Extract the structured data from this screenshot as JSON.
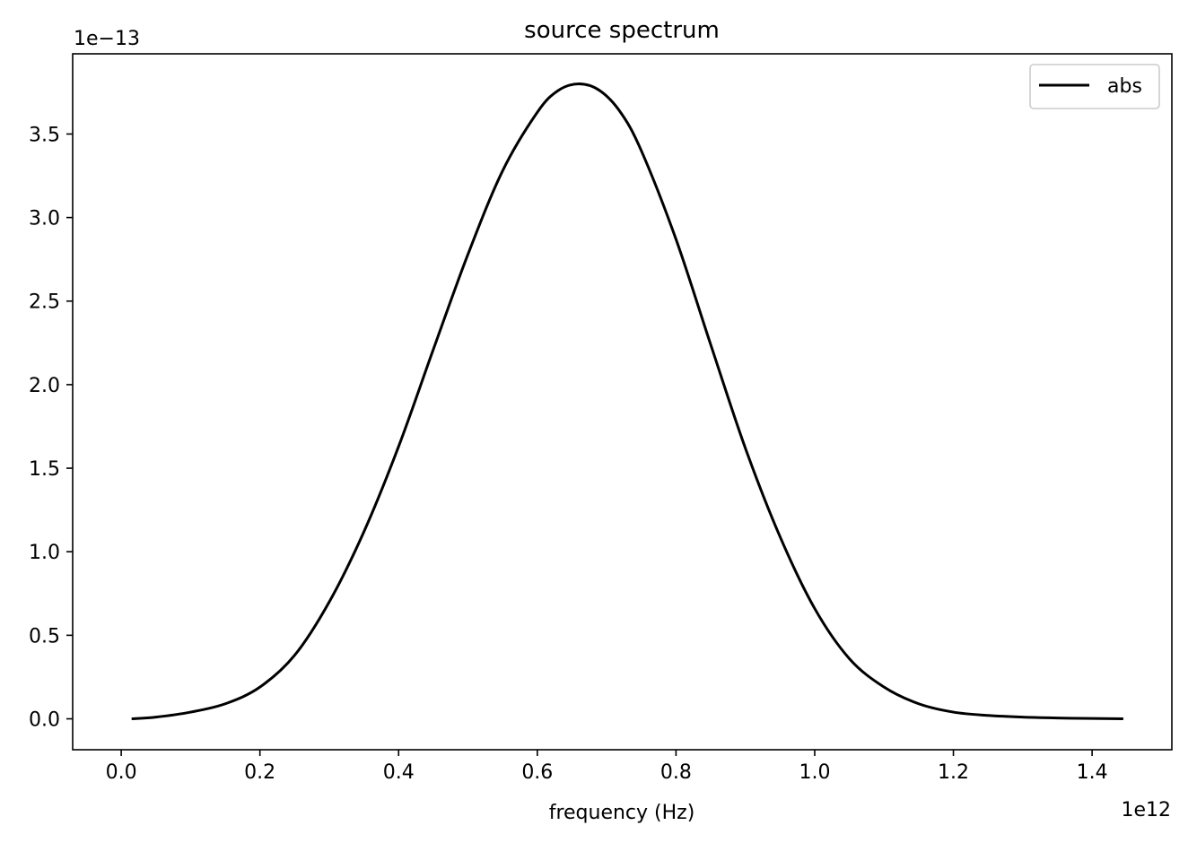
{
  "chart_data": {
    "type": "line",
    "title": "source spectrum",
    "xlabel": "frequency (Hz)",
    "ylabel": "",
    "x_offset_label": "1e12",
    "y_offset_label": "1e−13",
    "x_scale": 1000000000000.0,
    "y_scale": 1e-13,
    "xlim": [
      -0.07,
      1.515
    ],
    "ylim": [
      -0.185,
      3.98
    ],
    "x_ticks": [
      0.0,
      0.2,
      0.4,
      0.6,
      0.8,
      1.0,
      1.2,
      1.4
    ],
    "x_tick_labels": [
      "0.0",
      "0.2",
      "0.4",
      "0.6",
      "0.8",
      "1.0",
      "1.2",
      "1.4"
    ],
    "y_ticks": [
      0.0,
      0.5,
      1.0,
      1.5,
      2.0,
      2.5,
      3.0,
      3.5
    ],
    "y_tick_labels": [
      "0.0",
      "0.5",
      "1.0",
      "1.5",
      "2.0",
      "2.5",
      "3.0",
      "3.5"
    ],
    "grid": false,
    "legend_position": "top-right",
    "series": [
      {
        "name": "abs",
        "color": "#000000",
        "x": [
          0.015,
          0.05,
          0.1,
          0.15,
          0.2,
          0.25,
          0.3,
          0.35,
          0.4,
          0.45,
          0.5,
          0.55,
          0.6,
          0.63,
          0.66,
          0.69,
          0.72,
          0.75,
          0.8,
          0.85,
          0.9,
          0.95,
          1.0,
          1.05,
          1.1,
          1.15,
          1.2,
          1.25,
          1.3,
          1.35,
          1.4,
          1.445
        ],
        "y": [
          0.0,
          0.01,
          0.04,
          0.09,
          0.19,
          0.38,
          0.7,
          1.12,
          1.63,
          2.21,
          2.78,
          3.28,
          3.63,
          3.76,
          3.8,
          3.76,
          3.63,
          3.4,
          2.87,
          2.24,
          1.62,
          1.09,
          0.66,
          0.36,
          0.19,
          0.09,
          0.04,
          0.02,
          0.01,
          0.005,
          0.002,
          0.0
        ]
      }
    ]
  }
}
